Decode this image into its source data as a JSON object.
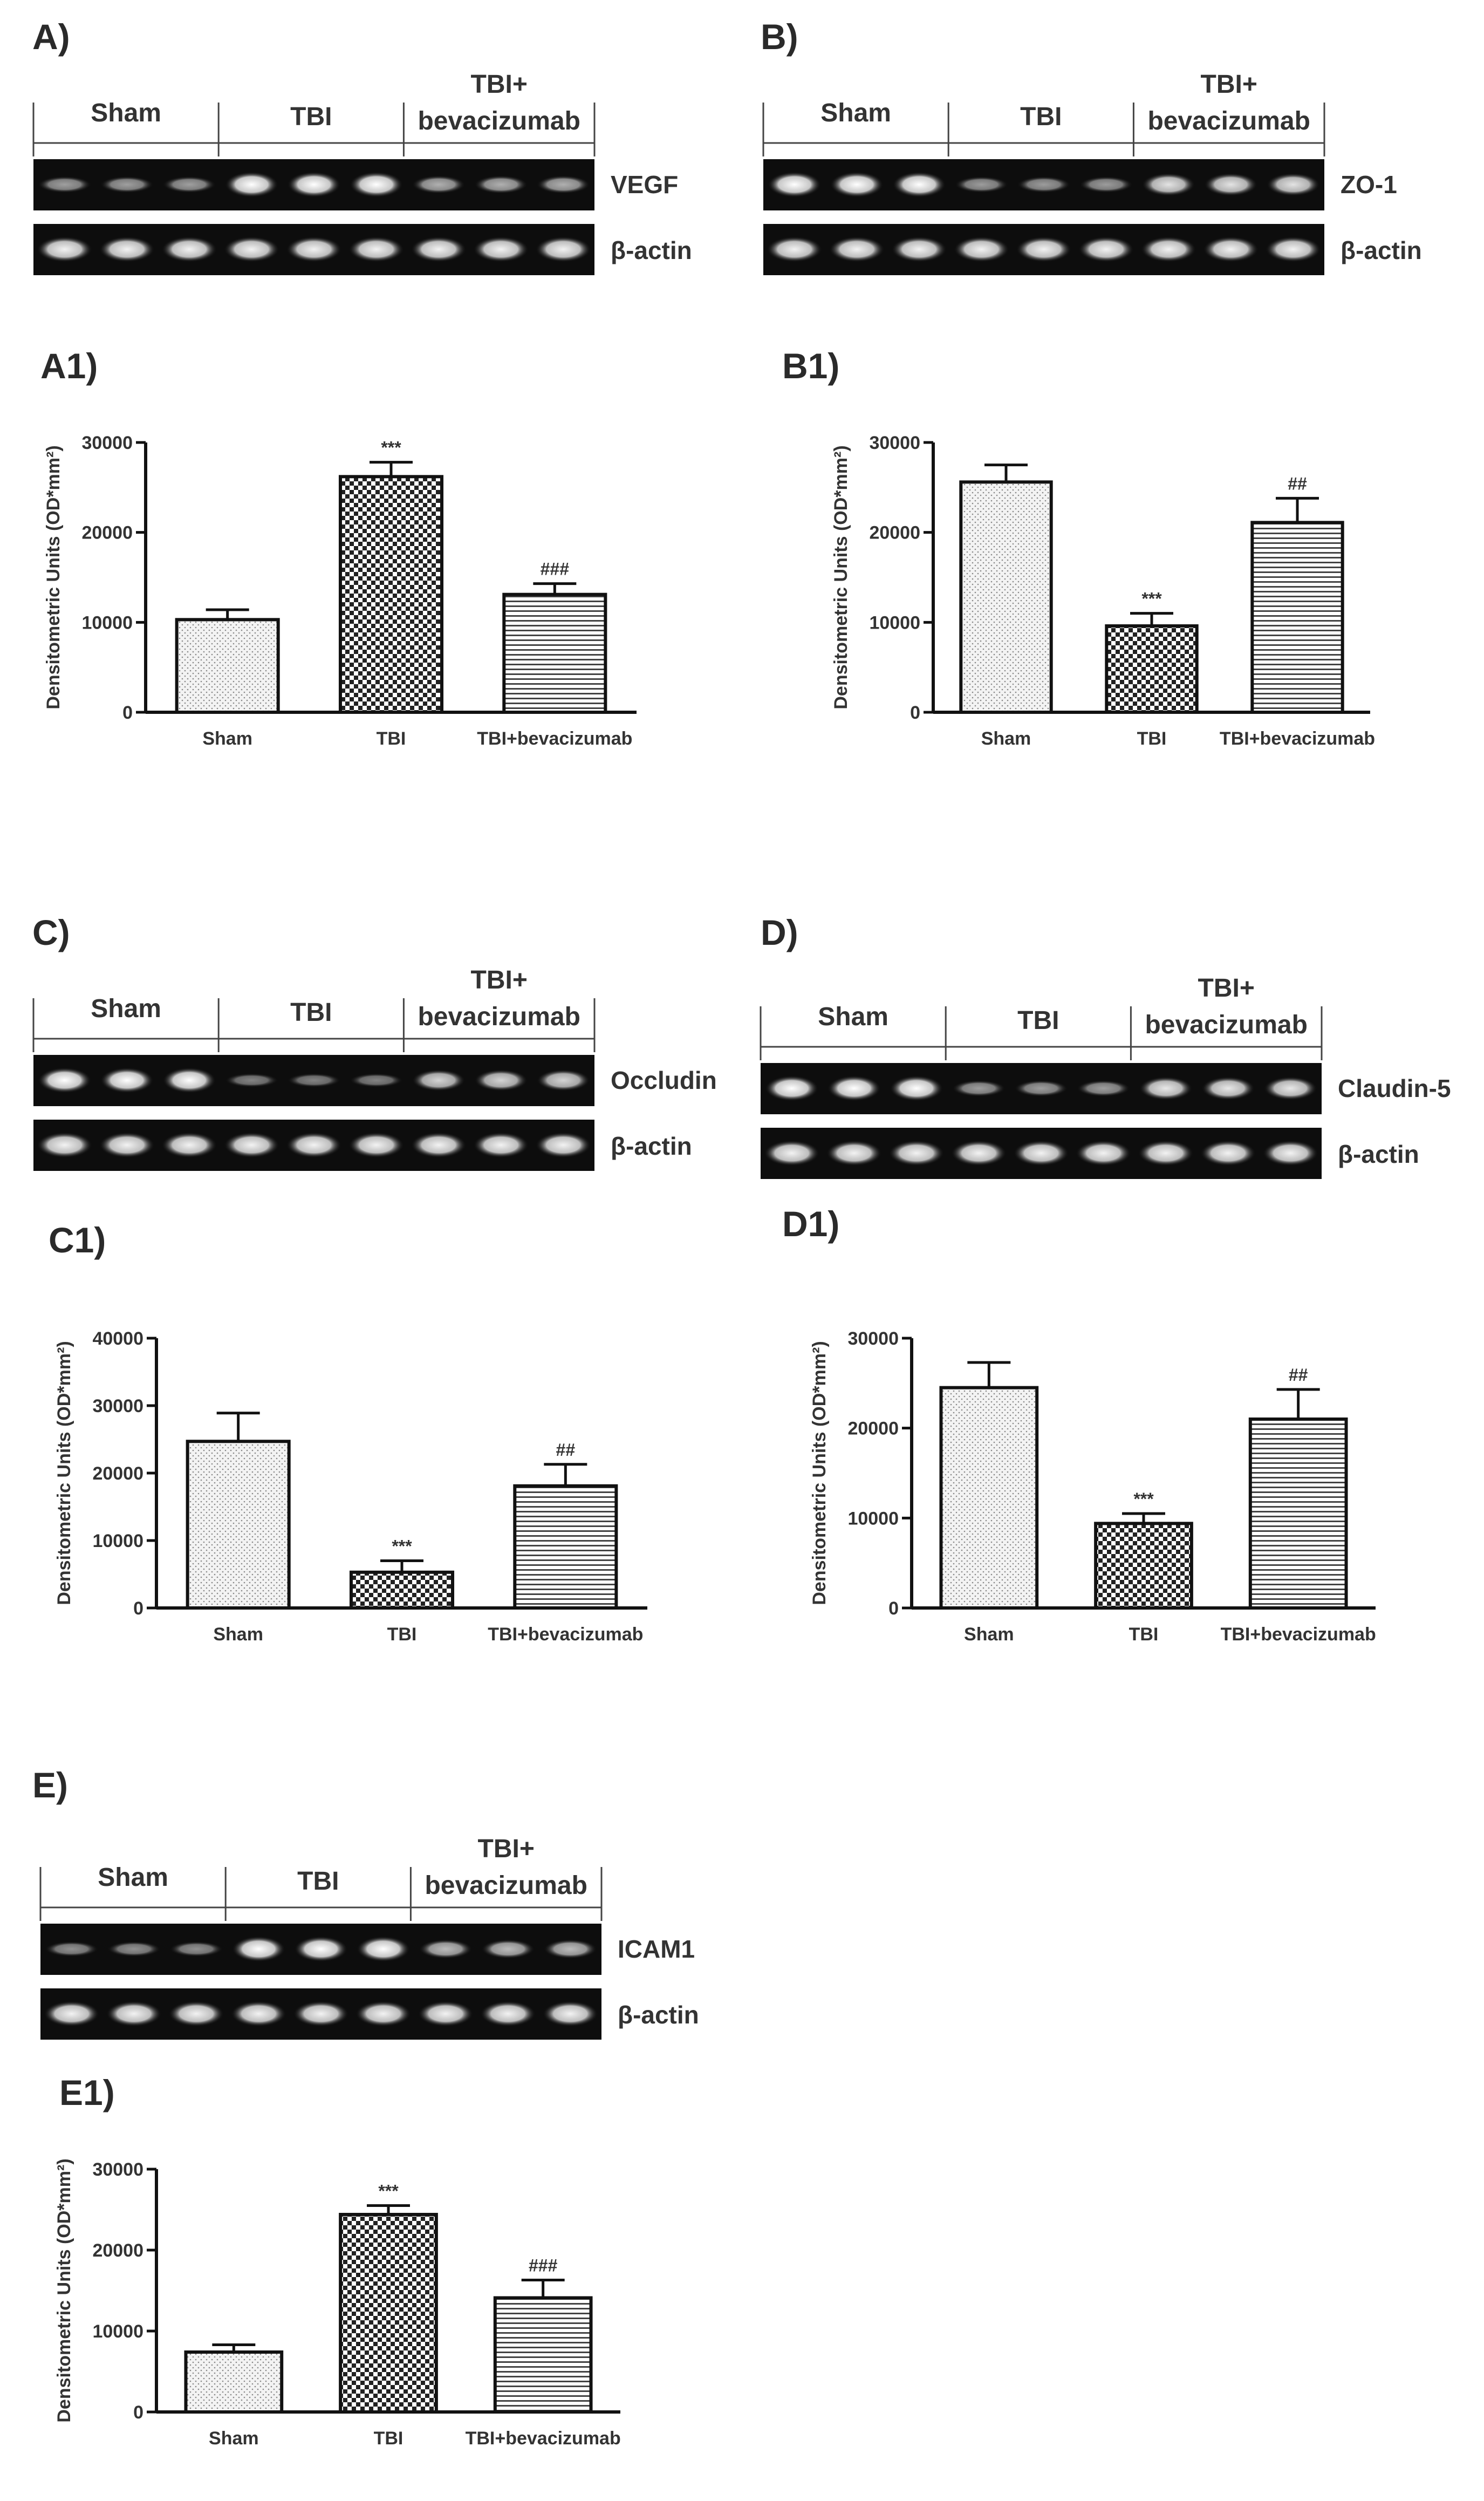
{
  "panels": [
    {
      "id": "A",
      "label": "A)",
      "groups": [
        "Sham",
        "TBI",
        "TBI+",
        "bevacizumab"
      ],
      "band_label": "VEGF",
      "control_label": "β-actin"
    },
    {
      "id": "B",
      "label": "B)",
      "groups": [
        "Sham",
        "TBI",
        "TBI+",
        "bevacizumab"
      ],
      "band_label": "ZO-1",
      "control_label": "β-actin"
    },
    {
      "id": "C",
      "label": "C)",
      "groups": [
        "Sham",
        "TBI",
        "TBI+",
        "bevacizumab"
      ],
      "band_label": "Occludin",
      "control_label": "β-actin"
    },
    {
      "id": "D",
      "label": "D)",
      "groups": [
        "Sham",
        "TBI",
        "TBI+",
        "bevacizumab"
      ],
      "band_label": "Claudin-5",
      "control_label": "β-actin"
    },
    {
      "id": "E",
      "label": "E)",
      "groups": [
        "Sham",
        "TBI",
        "TBI+",
        "bevacizumab"
      ],
      "band_label": "ICAM1",
      "control_label": "β-actin"
    }
  ],
  "chart_data": [
    {
      "id": "A1",
      "label": "A1)",
      "type": "bar",
      "categories": [
        "Sham",
        "TBI",
        "TBI+bevacizumab"
      ],
      "values": [
        10300,
        26200,
        13100
      ],
      "errors": [
        1100,
        1600,
        1200
      ],
      "annotations": [
        "",
        "***",
        "###"
      ],
      "ylabel": "Densitometric Units (OD*mm²)",
      "ylim": [
        0,
        30000
      ],
      "yticks": [
        "0",
        "10000",
        "20000",
        "30000"
      ],
      "patterns": [
        "dots",
        "checker",
        "hlines"
      ]
    },
    {
      "id": "B1",
      "label": "B1)",
      "type": "bar",
      "categories": [
        "Sham",
        "TBI",
        "TBI+bevacizumab"
      ],
      "values": [
        25600,
        9600,
        21100
      ],
      "errors": [
        1900,
        1400,
        2700
      ],
      "annotations": [
        "",
        "***",
        "##"
      ],
      "ylabel": "Densitometric Units (OD*mm²)",
      "ylim": [
        0,
        30000
      ],
      "yticks": [
        "0",
        "10000",
        "20000",
        "30000"
      ],
      "patterns": [
        "dots",
        "checker",
        "hlines"
      ]
    },
    {
      "id": "C1",
      "label": "C1)",
      "type": "bar",
      "categories": [
        "Sham",
        "TBI",
        "TBI+bevacizumab"
      ],
      "values": [
        24700,
        5300,
        18100
      ],
      "errors": [
        4200,
        1700,
        3200
      ],
      "annotations": [
        "",
        "***",
        "##"
      ],
      "ylabel": "Densitometric Units (OD*mm²)",
      "ylim": [
        0,
        40000
      ],
      "yticks": [
        "0",
        "10000",
        "20000",
        "30000",
        "40000"
      ],
      "patterns": [
        "dots",
        "checker",
        "hlines"
      ]
    },
    {
      "id": "D1",
      "label": "D1)",
      "type": "bar",
      "categories": [
        "Sham",
        "TBI",
        "TBI+bevacizumab"
      ],
      "values": [
        24500,
        9400,
        21000
      ],
      "errors": [
        2800,
        1100,
        3300
      ],
      "annotations": [
        "",
        "***",
        "##"
      ],
      "ylabel": "Densitometric Units (OD*mm²)",
      "ylim": [
        0,
        30000
      ],
      "yticks": [
        "0",
        "10000",
        "20000",
        "30000"
      ],
      "patterns": [
        "dots",
        "checker",
        "hlines"
      ]
    },
    {
      "id": "E1",
      "label": "E1)",
      "type": "bar",
      "categories": [
        "Sham",
        "TBI",
        "TBI+bevacizumab"
      ],
      "values": [
        7400,
        24400,
        14100
      ],
      "errors": [
        900,
        1100,
        2200
      ],
      "annotations": [
        "",
        "***",
        "###"
      ],
      "ylabel": "Densitometric Units (OD*mm²)",
      "ylim": [
        0,
        30000
      ],
      "yticks": [
        "0",
        "10000",
        "20000",
        "30000"
      ],
      "patterns": [
        "dots",
        "checker",
        "hlines"
      ]
    }
  ]
}
